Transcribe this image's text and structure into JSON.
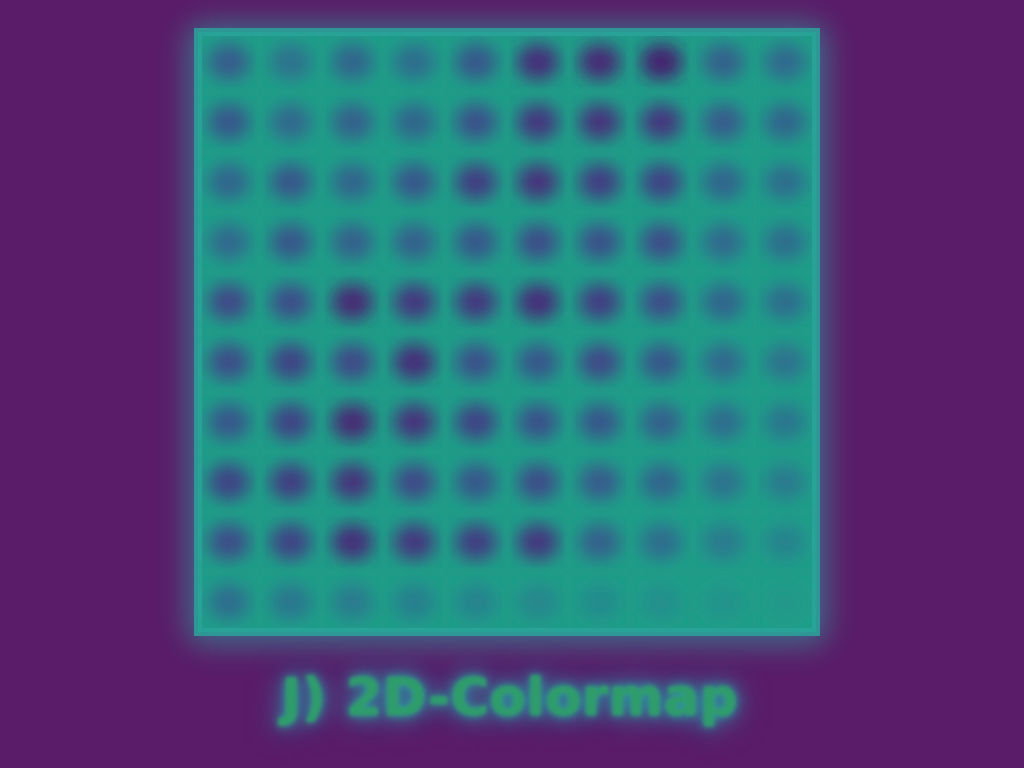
{
  "caption": "J) 2D-Colormap",
  "colors": {
    "background": "#5a1c68",
    "colormap": [
      "#482878",
      "#3e4989",
      "#31688e",
      "#26828e",
      "#1f9e89",
      "#35b779",
      "#6ece58",
      "#b5de2b"
    ]
  },
  "chart_data": {
    "type": "heatmap",
    "title": "",
    "xlabel": "",
    "ylabel": "",
    "colormap": "viridis",
    "value_range": [
      0,
      1
    ],
    "grid": true,
    "rows": 10,
    "cols": 10,
    "cell_values": [
      [
        0.32,
        0.42,
        0.36,
        0.4,
        0.3,
        0.14,
        0.12,
        0.1,
        0.34,
        0.38
      ],
      [
        0.3,
        0.38,
        0.34,
        0.36,
        0.28,
        0.18,
        0.16,
        0.18,
        0.32,
        0.36
      ],
      [
        0.36,
        0.3,
        0.36,
        0.3,
        0.2,
        0.16,
        0.2,
        0.22,
        0.36,
        0.4
      ],
      [
        0.38,
        0.3,
        0.34,
        0.34,
        0.3,
        0.26,
        0.28,
        0.26,
        0.38,
        0.4
      ],
      [
        0.24,
        0.26,
        0.12,
        0.18,
        0.18,
        0.14,
        0.2,
        0.26,
        0.36,
        0.4
      ],
      [
        0.26,
        0.22,
        0.24,
        0.14,
        0.28,
        0.3,
        0.24,
        0.3,
        0.38,
        0.42
      ],
      [
        0.3,
        0.22,
        0.12,
        0.16,
        0.22,
        0.28,
        0.3,
        0.34,
        0.4,
        0.44
      ],
      [
        0.22,
        0.2,
        0.16,
        0.24,
        0.3,
        0.26,
        0.32,
        0.36,
        0.42,
        0.46
      ],
      [
        0.26,
        0.22,
        0.14,
        0.18,
        0.2,
        0.18,
        0.34,
        0.4,
        0.46,
        0.5
      ],
      [
        0.4,
        0.44,
        0.46,
        0.48,
        0.5,
        0.52,
        0.54,
        0.56,
        0.58,
        0.6
      ]
    ],
    "grid_line_value": 0.62,
    "note": ""
  }
}
